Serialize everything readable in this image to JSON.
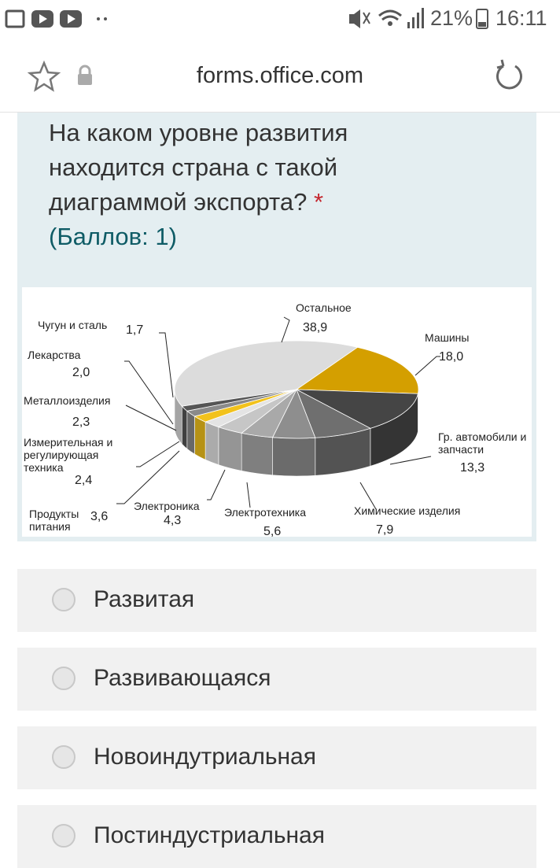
{
  "status_bar": {
    "battery": "21%",
    "time": "16:11"
  },
  "address_bar": {
    "url": "forms.office.com"
  },
  "question": {
    "text": "На каком уровне развития находится страна с такой диаграммой экспорта?",
    "required_mark": "*",
    "points": "(Баллов: 1)"
  },
  "chart_data": {
    "type": "pie",
    "categories": [
      "Остальное",
      "Машины",
      "Гр. автомобили и запчасти",
      "Химические изделия",
      "Электротехника",
      "Электроника",
      "Продукты питания",
      "Измерительная и регулирующая техника",
      "Металлоизделия",
      "Лекарства",
      "Чугун и сталь"
    ],
    "values": [
      38.9,
      18.0,
      13.3,
      7.9,
      5.6,
      4.3,
      3.6,
      2.4,
      2.3,
      2.0,
      1.7
    ],
    "value_labels": [
      "38,9",
      "18,0",
      "13,3",
      "7,9",
      "5,6",
      "4,3",
      "3,6",
      "2,4",
      "2,3",
      "2,0",
      "1,7"
    ],
    "colors": [
      "#dcdcdc",
      "#d49f00",
      "#454545",
      "#6f6f6f",
      "#8e8e8e",
      "#a9a9a9",
      "#c6c6c6",
      "#e4e4e4",
      "#f2c21c",
      "#8a8a8a",
      "#555555"
    ]
  },
  "options": [
    "Развитая",
    "Развивающаяся",
    "Новоиндутриальная",
    "Постиндустриальная"
  ]
}
